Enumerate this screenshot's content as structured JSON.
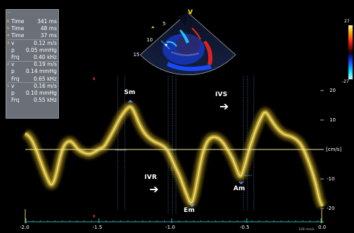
{
  "header": "···",
  "measurements": [
    {
      "idx": "6",
      "label": "Time",
      "value": "341 ms"
    },
    {
      "idx": "5",
      "label": "Time",
      "value": "48 ms"
    },
    {
      "idx": "4",
      "label": "Time",
      "value": "37 ms"
    },
    {
      "idx": "3",
      "label": "v",
      "value": "0.12 m/s"
    },
    {
      "idx": "",
      "label": "p",
      "value": "0.05 mmHg"
    },
    {
      "idx": "",
      "label": "Frq",
      "value": "0.40 kHz"
    },
    {
      "idx": "2",
      "label": "v",
      "value": "0.19 m/s"
    },
    {
      "idx": "",
      "label": "p",
      "value": "0.14 mmHg"
    },
    {
      "idx": "",
      "label": "Frq",
      "value": "0.65 kHz"
    },
    {
      "idx": "1",
      "label": "v",
      "value": "0.16 m/s"
    },
    {
      "idx": "",
      "label": "p",
      "value": "0.10 mmHg"
    },
    {
      "idx": "",
      "label": "Frq",
      "value": "0.55 kHz"
    }
  ],
  "annotations": {
    "sm": "Sm",
    "ivs": "IVS",
    "ivr": "IVR",
    "em": "Em",
    "am": "Am",
    "ivs_arrow": "➔",
    "ivr_arrow": "➔"
  },
  "sector": {
    "marker": "V",
    "depth_labels": [
      "5",
      "10",
      "15"
    ]
  },
  "color_bar": {
    "top": "27",
    "bottom": "-27"
  },
  "velocity_axis": {
    "unit": "[cm/s]",
    "ticks": [
      "20",
      "10",
      "-10",
      "-20"
    ]
  },
  "time_axis": {
    "ticks": [
      "-2.0",
      "-1.5",
      "-1.0",
      "-0.5",
      "0.0"
    ],
    "sweep": "100 mm/s"
  },
  "colors": {
    "spectrum": "#e8c83a",
    "baseline": "#f2e69a",
    "axis": "#2fb3b0",
    "panel": "#6a6f78"
  }
}
